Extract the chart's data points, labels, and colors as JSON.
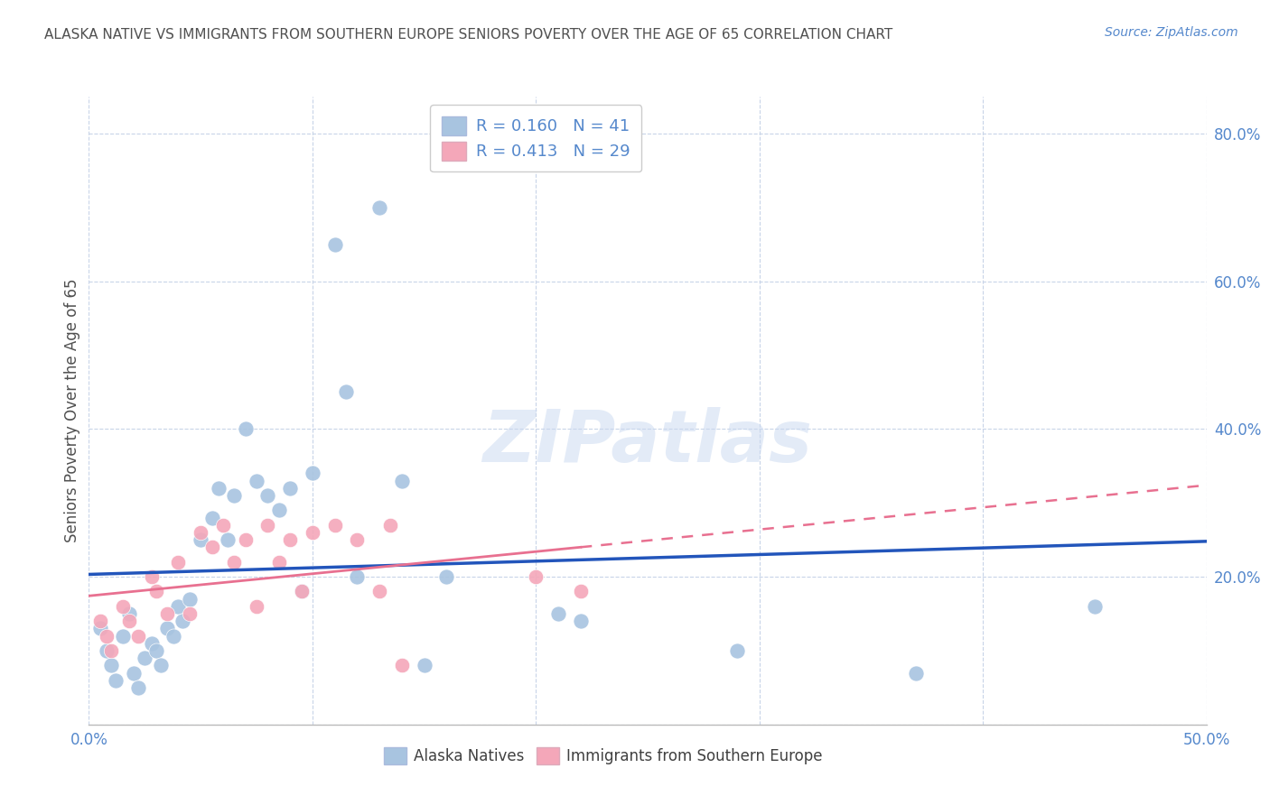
{
  "title": "ALASKA NATIVE VS IMMIGRANTS FROM SOUTHERN EUROPE SENIORS POVERTY OVER THE AGE OF 65 CORRELATION CHART",
  "source": "Source: ZipAtlas.com",
  "ylabel": "Seniors Poverty Over the Age of 65",
  "xlim": [
    0.0,
    0.5
  ],
  "ylim": [
    0.0,
    0.85
  ],
  "xticks": [
    0.0,
    0.1,
    0.2,
    0.3,
    0.4,
    0.5
  ],
  "ytick_values": [
    0.0,
    0.2,
    0.4,
    0.6,
    0.8
  ],
  "right_ytick_labels": [
    "80.0%",
    "60.0%",
    "40.0%",
    "20.0%"
  ],
  "right_ytick_values": [
    0.8,
    0.6,
    0.4,
    0.2
  ],
  "blue_R": 0.16,
  "blue_N": 41,
  "pink_R": 0.413,
  "pink_N": 29,
  "blue_color": "#a8c4e0",
  "pink_color": "#f4a7b9",
  "blue_line_color": "#2255bb",
  "pink_line_color": "#e87090",
  "grid_color": "#c8d4e8",
  "title_color": "#505050",
  "label_color": "#5588cc",
  "bottom_label_color": "#404040",
  "watermark_color": "#c8d8f0",
  "watermark": "ZIPatlas",
  "alaska_natives_x": [
    0.005,
    0.008,
    0.01,
    0.012,
    0.015,
    0.018,
    0.02,
    0.022,
    0.025,
    0.028,
    0.03,
    0.032,
    0.035,
    0.038,
    0.04,
    0.042,
    0.045,
    0.05,
    0.055,
    0.058,
    0.062,
    0.065,
    0.07,
    0.075,
    0.08,
    0.085,
    0.09,
    0.095,
    0.1,
    0.11,
    0.115,
    0.12,
    0.13,
    0.14,
    0.15,
    0.16,
    0.21,
    0.22,
    0.29,
    0.37,
    0.45
  ],
  "alaska_natives_y": [
    0.13,
    0.1,
    0.08,
    0.06,
    0.12,
    0.15,
    0.07,
    0.05,
    0.09,
    0.11,
    0.1,
    0.08,
    0.13,
    0.12,
    0.16,
    0.14,
    0.17,
    0.25,
    0.28,
    0.32,
    0.25,
    0.31,
    0.4,
    0.33,
    0.31,
    0.29,
    0.32,
    0.18,
    0.34,
    0.65,
    0.45,
    0.2,
    0.7,
    0.33,
    0.08,
    0.2,
    0.15,
    0.14,
    0.1,
    0.07,
    0.16
  ],
  "southern_europe_x": [
    0.005,
    0.008,
    0.01,
    0.015,
    0.018,
    0.022,
    0.028,
    0.03,
    0.035,
    0.04,
    0.045,
    0.05,
    0.055,
    0.06,
    0.065,
    0.07,
    0.075,
    0.08,
    0.085,
    0.09,
    0.095,
    0.1,
    0.11,
    0.12,
    0.13,
    0.135,
    0.14,
    0.2,
    0.22
  ],
  "southern_europe_y": [
    0.14,
    0.12,
    0.1,
    0.16,
    0.14,
    0.12,
    0.2,
    0.18,
    0.15,
    0.22,
    0.15,
    0.26,
    0.24,
    0.27,
    0.22,
    0.25,
    0.16,
    0.27,
    0.22,
    0.25,
    0.18,
    0.26,
    0.27,
    0.25,
    0.18,
    0.27,
    0.08,
    0.2,
    0.18
  ]
}
